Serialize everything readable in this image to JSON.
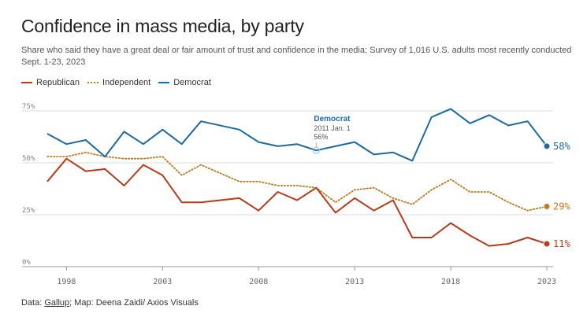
{
  "header": {
    "title": "Confidence in mass media, by party",
    "subtitle": "Share who said they have a great deal or fair amount of trust and confidence in the media; Survey of 1,016 U.S. adults most recently conducted Sept. 1-23, 2023"
  },
  "footer": {
    "prefix": "Data: ",
    "source": "Gallup",
    "suffix": "; Map: Deena Zaidi/ Axios Visuals"
  },
  "chart_data": {
    "type": "line",
    "title": "Confidence in mass media, by party",
    "xlim": [
      1997,
      2023
    ],
    "ylim": [
      0,
      75
    ],
    "yticks": [
      0,
      25,
      50,
      75
    ],
    "ytick_labels": [
      "0%",
      "25%",
      "50%",
      "75%"
    ],
    "xticks": [
      1998,
      2003,
      2008,
      2013,
      2018,
      2023
    ],
    "legend_position": "top-left",
    "grid": true,
    "series": [
      {
        "name": "Republican",
        "color": "#b83a16",
        "style": "solid",
        "end_label": "11%",
        "x": [
          1997,
          1998,
          1999,
          2000,
          2001,
          2002,
          2003,
          2004,
          2005,
          2007,
          2008,
          2009,
          2010,
          2011,
          2012,
          2013,
          2014,
          2015,
          2016,
          2017,
          2018,
          2019,
          2020,
          2021,
          2022,
          2023
        ],
        "values": [
          41,
          52,
          46,
          47,
          39,
          49,
          44,
          31,
          31,
          33,
          27,
          36,
          32,
          38,
          26,
          33,
          27,
          32,
          14,
          14,
          21,
          15,
          10,
          11,
          14,
          11
        ]
      },
      {
        "name": "Independent",
        "color": "#c07a1c",
        "style": "dotted",
        "end_label": "29%",
        "x": [
          1997,
          1998,
          1999,
          2000,
          2001,
          2002,
          2003,
          2004,
          2005,
          2007,
          2008,
          2009,
          2010,
          2011,
          2012,
          2013,
          2014,
          2015,
          2016,
          2017,
          2018,
          2019,
          2020,
          2021,
          2022,
          2023
        ],
        "values": [
          53,
          53,
          55,
          53,
          52,
          52,
          53,
          44,
          49,
          41,
          41,
          39,
          39,
          38,
          31,
          37,
          38,
          33,
          30,
          37,
          42,
          36,
          36,
          31,
          27,
          29
        ]
      },
      {
        "name": "Democrat",
        "color": "#1a6aa5",
        "style": "solid",
        "end_label": "58%",
        "x": [
          1997,
          1998,
          1999,
          2000,
          2001,
          2002,
          2003,
          2004,
          2005,
          2007,
          2008,
          2009,
          2010,
          2011,
          2012,
          2013,
          2014,
          2015,
          2016,
          2017,
          2018,
          2019,
          2020,
          2021,
          2022,
          2023
        ],
        "values": [
          64,
          59,
          61,
          53,
          65,
          59,
          66,
          59,
          70,
          66,
          60,
          58,
          59,
          56,
          58,
          60,
          54,
          55,
          51,
          72,
          76,
          69,
          73,
          68,
          70,
          58
        ]
      }
    ],
    "annotation": {
      "series": "Democrat",
      "label": "Democrat",
      "date": "2011 Jan. 1",
      "value_label": "56%",
      "x": 2011,
      "y": 56
    }
  }
}
